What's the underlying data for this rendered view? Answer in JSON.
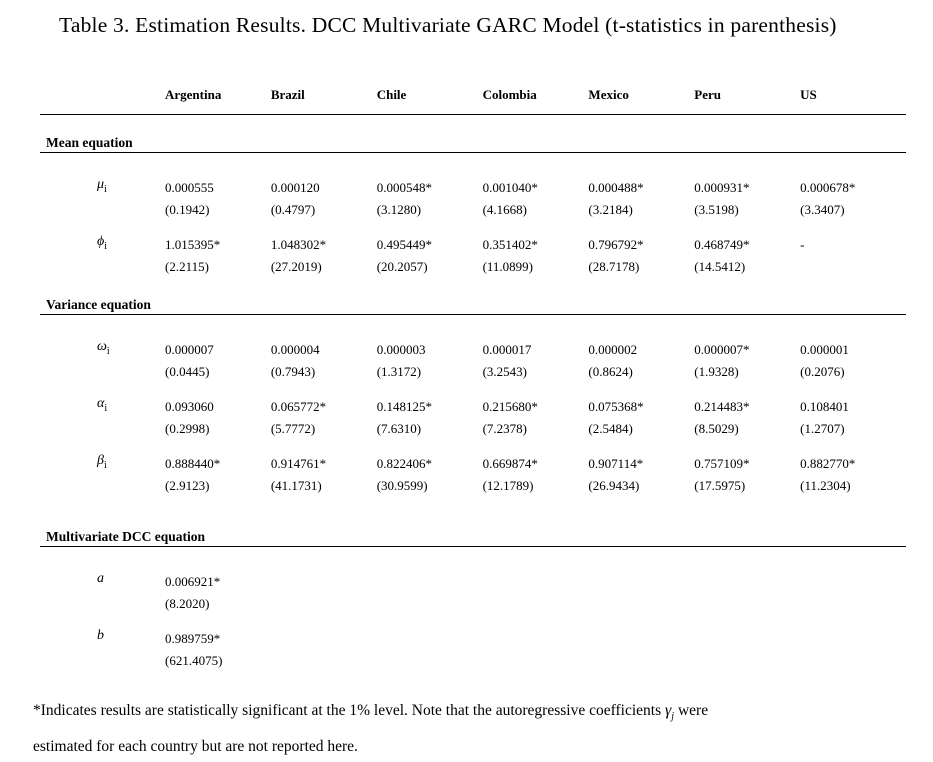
{
  "title": "Table 3. Estimation Results. DCC Multivariate GARC Model (t-statistics in parenthesis)",
  "table": {
    "columns": [
      "Argentina",
      "Brazil",
      "Chile",
      "Colombia",
      "Mexico",
      "Peru",
      "US"
    ],
    "sections": [
      {
        "label": "Mean equation",
        "rows": [
          {
            "name": "mu",
            "symbol": "μ",
            "sub": "i",
            "cells": [
              {
                "value": "0.000555",
                "tstat": "(0.1942)"
              },
              {
                "value": "0.000120",
                "tstat": "(0.4797)"
              },
              {
                "value": "0.000548*",
                "tstat": "(3.1280)"
              },
              {
                "value": "0.001040*",
                "tstat": "(4.1668)"
              },
              {
                "value": "0.000488*",
                "tstat": "(3.2184)"
              },
              {
                "value": "0.000931*",
                "tstat": "(3.5198)"
              },
              {
                "value": "0.000678*",
                "tstat": "(3.3407)"
              }
            ]
          },
          {
            "name": "phi",
            "symbol": "ϕ",
            "sub": "i",
            "cells": [
              {
                "value": "1.015395*",
                "tstat": "(2.2115)"
              },
              {
                "value": "1.048302*",
                "tstat": "(27.2019)"
              },
              {
                "value": "0.495449*",
                "tstat": "(20.2057)"
              },
              {
                "value": "0.351402*",
                "tstat": "(11.0899)"
              },
              {
                "value": "0.796792*",
                "tstat": "(28.7178)"
              },
              {
                "value": "0.468749*",
                "tstat": "(14.5412)"
              },
              {
                "value": "-",
                "tstat": ""
              }
            ]
          }
        ]
      },
      {
        "label": "Variance equation",
        "rows": [
          {
            "name": "omega",
            "symbol": "ω",
            "sub": "i",
            "cells": [
              {
                "value": "0.000007",
                "tstat": "(0.0445)"
              },
              {
                "value": "0.000004",
                "tstat": "(0.7943)"
              },
              {
                "value": "0.000003",
                "tstat": "(1.3172)"
              },
              {
                "value": "0.000017",
                "tstat": "(3.2543)"
              },
              {
                "value": "0.000002",
                "tstat": "(0.8624)"
              },
              {
                "value": "0.000007*",
                "tstat": "(1.9328)"
              },
              {
                "value": "0.000001",
                "tstat": "(0.2076)"
              }
            ]
          },
          {
            "name": "alpha",
            "symbol": "α",
            "sub": "i",
            "cells": [
              {
                "value": "0.093060",
                "tstat": "(0.2998)"
              },
              {
                "value": "0.065772*",
                "tstat": "(5.7772)"
              },
              {
                "value": "0.148125*",
                "tstat": "(7.6310)"
              },
              {
                "value": "0.215680*",
                "tstat": "(7.2378)"
              },
              {
                "value": "0.075368*",
                "tstat": "(2.5484)"
              },
              {
                "value": "0.214483*",
                "tstat": "(8.5029)"
              },
              {
                "value": "0.108401",
                "tstat": "(1.2707)"
              }
            ]
          },
          {
            "name": "beta",
            "symbol": "β",
            "sub": "i",
            "cells": [
              {
                "value": "0.888440*",
                "tstat": "(2.9123)"
              },
              {
                "value": "0.914761*",
                "tstat": "(41.1731)"
              },
              {
                "value": "0.822406*",
                "tstat": "(30.9599)"
              },
              {
                "value": "0.669874*",
                "tstat": "(12.1789)"
              },
              {
                "value": "0.907114*",
                "tstat": "(26.9434)"
              },
              {
                "value": "0.757109*",
                "tstat": "(17.5975)"
              },
              {
                "value": "0.882770*",
                "tstat": "(11.2304)"
              }
            ]
          }
        ]
      },
      {
        "label": "Multivariate DCC equation",
        "rows": [
          {
            "name": "a",
            "symbol": "a",
            "sub": "",
            "cells": [
              {
                "value": "0.006921*",
                "tstat": "(8.2020)"
              }
            ]
          },
          {
            "name": "b",
            "symbol": "b",
            "sub": "",
            "cells": [
              {
                "value": "0.989759*",
                "tstat": "(621.4075)"
              }
            ]
          }
        ]
      }
    ]
  },
  "footnote": {
    "line1_prefix": "*Indicates results are statistically significant at the 1% level. Note that the autoregressive coefficients ",
    "gamma": "γ",
    "gamma_sub": "j",
    "line1_suffix": " were",
    "line2": "estimated for each country but are not reported here."
  }
}
